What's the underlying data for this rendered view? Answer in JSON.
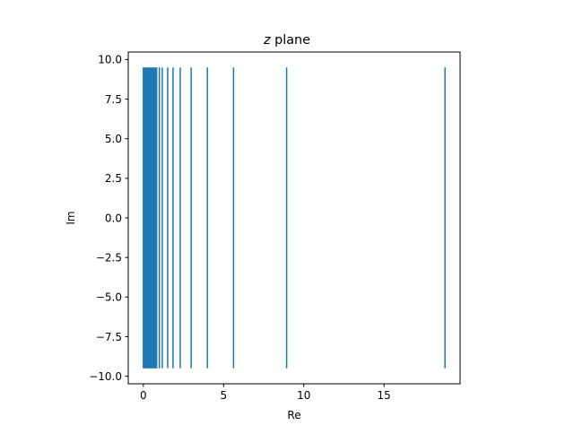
{
  "chart_data": {
    "type": "vlines",
    "title_italic": "z",
    "title_rest": " plane",
    "xlabel": "Re",
    "ylabel": "Im",
    "xlim": [
      -0.94,
      19.74
    ],
    "ylim": [
      -10.475,
      10.475
    ],
    "xticks": [
      0,
      5,
      10,
      15
    ],
    "xtick_labels": [
      "0",
      "5",
      "10",
      "15"
    ],
    "yticks": [
      -10,
      -7.5,
      -5,
      -2.5,
      0,
      2.5,
      5,
      7.5,
      10
    ],
    "ytick_labels": [
      "−10.0",
      "−7.5",
      "−5.0",
      "−2.5",
      "0.0",
      "2.5",
      "5.0",
      "7.5",
      "10.0"
    ],
    "line_ymin": -9.5,
    "line_ymax": 9.5,
    "dense_block_range": [
      0.0,
      0.83
    ],
    "x_lines": [
      1.0,
      1.18,
      1.52,
      1.85,
      2.3,
      2.98,
      3.99,
      5.62,
      8.93,
      18.8
    ],
    "color": "#1f77b4",
    "grid": false
  }
}
